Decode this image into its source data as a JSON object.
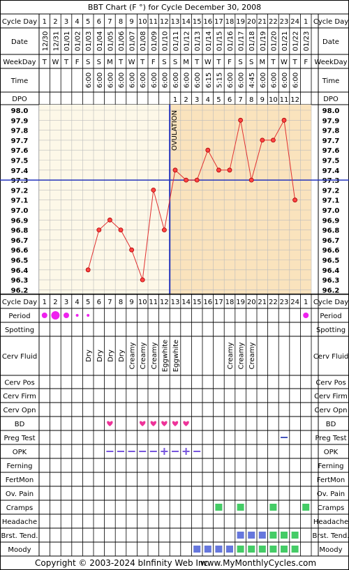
{
  "title": "BBT Chart (F °) for Cycle December 30, 2008",
  "copyright": "Copyright © 2003-2024 bInfinity Web Inc.",
  "website": "www.MyMonthlyCycles.com",
  "row_labels": {
    "cycle_day": "Cycle Day",
    "date": "Date",
    "weekday": "WeekDay",
    "time": "Time",
    "dpo": "DPO",
    "period": "Period",
    "spotting": "Spotting",
    "cerv_fluid": "Cerv Fluid",
    "cerv_pos": "Cerv Pos",
    "cerv_firm": "Cerv Firm",
    "cerv_opn": "Cerv Opn",
    "bd": "BD",
    "preg_test": "Preg Test",
    "opk": "OPK",
    "ferning": "Ferning",
    "fertmon": "FertMon",
    "ov_pain": "Ov. Pain",
    "cramps": "Cramps",
    "headache": "Headache",
    "brst_tend": "Brst. Tend.",
    "moody": "Moody"
  },
  "colors": {
    "line": "#e03030",
    "coverline": "#2233bb",
    "ovulation": "#2233bb",
    "period": "#ee22ee",
    "bd_heart": "#ee3399",
    "opk": "#7755dd",
    "cramps": "#44cc66",
    "brst_tend": "#6677dd",
    "moody": "#6677dd",
    "preg_test": "#4455bb",
    "pre_ov_bg": "#fdf8e8",
    "post_ov_bg": "#fae3bd"
  },
  "chart_data": {
    "type": "line",
    "title": "BBT Chart (F °) for Cycle December 30, 2008",
    "cycle_days": [
      "1",
      "2",
      "3",
      "4",
      "5",
      "6",
      "7",
      "8",
      "9",
      "10",
      "11",
      "12",
      "13",
      "14",
      "15",
      "16",
      "17",
      "18",
      "19",
      "20",
      "21",
      "22",
      "23",
      "24",
      "1"
    ],
    "dates": [
      "12/30",
      "12/31",
      "01/01",
      "01/02",
      "01/03",
      "01/04",
      "01/05",
      "01/06",
      "01/07",
      "01/08",
      "01/09",
      "01/10",
      "01/11",
      "01/12",
      "01/13",
      "01/14",
      "01/15",
      "01/16",
      "01/17",
      "01/18",
      "01/19",
      "01/20",
      "01/21",
      "01/22",
      "01/23"
    ],
    "weekdays": [
      "T",
      "W",
      "T",
      "F",
      "S",
      "S",
      "M",
      "T",
      "W",
      "T",
      "F",
      "S",
      "S",
      "M",
      "T",
      "W",
      "T",
      "F",
      "S",
      "S",
      "M",
      "T",
      "W",
      "T",
      "F"
    ],
    "times": [
      "",
      "",
      "",
      "",
      "6:00",
      "6:00",
      "6:00",
      "6:00",
      "6:00",
      "6:00",
      "6:00",
      "6:00",
      "6:00",
      "6:00",
      "6:00",
      "6:15",
      "5:15",
      "6:00",
      "6:00",
      "4:45",
      "6:00",
      "6:00",
      "6:00",
      "6:00",
      ""
    ],
    "dpo": [
      "",
      "",
      "",
      "",
      "",
      "",
      "",
      "",
      "",
      "",
      "",
      "",
      "1",
      "2",
      "3",
      "4",
      "5",
      "6",
      "7",
      "8",
      "9",
      "10",
      "11",
      "12",
      ""
    ],
    "temps": [
      null,
      null,
      null,
      null,
      96.4,
      96.8,
      96.9,
      96.8,
      96.6,
      96.3,
      97.2,
      96.8,
      97.4,
      97.3,
      97.3,
      97.6,
      97.4,
      97.4,
      97.9,
      97.3,
      97.7,
      97.7,
      97.9,
      97.1,
      null
    ],
    "y_ticks": [
      "98.0",
      "97.9",
      "97.8",
      "97.7",
      "97.6",
      "97.5",
      "97.4",
      "97.3",
      "97.2",
      "97.1",
      "97.0",
      "96.9",
      "96.8",
      "96.7",
      "96.6",
      "96.5",
      "96.4",
      "96.3",
      "96.2"
    ],
    "ylim": [
      96.2,
      98.0
    ],
    "coverline": 97.3,
    "ovulation_after_day_index": 11,
    "ovulation_label": "OVULATION",
    "grid": true
  },
  "period": [
    2,
    3,
    2,
    1,
    1,
    0,
    0,
    0,
    0,
    0,
    0,
    0,
    0,
    0,
    0,
    0,
    0,
    0,
    0,
    0,
    0,
    0,
    0,
    0,
    2
  ],
  "cerv_fluid": [
    "",
    "",
    "",
    "",
    "Dry",
    "Dry",
    "Dry",
    "Dry",
    "Creamy",
    "Creamy",
    "Creamy",
    "Eggwhite",
    "Eggwhite",
    "",
    "",
    "",
    "",
    "Creamy",
    "Creamy",
    "Creamy",
    "",
    "",
    "",
    "",
    ""
  ],
  "bd": [
    0,
    0,
    0,
    0,
    0,
    0,
    1,
    0,
    0,
    1,
    1,
    1,
    1,
    1,
    0,
    0,
    0,
    0,
    0,
    0,
    0,
    0,
    0,
    0,
    0
  ],
  "preg_test": [
    0,
    0,
    0,
    0,
    0,
    0,
    0,
    0,
    0,
    0,
    0,
    0,
    0,
    0,
    0,
    0,
    0,
    0,
    0,
    0,
    0,
    0,
    1,
    0,
    0
  ],
  "opk": [
    "",
    "",
    "",
    "",
    "",
    "",
    "-",
    "-",
    "-",
    "-",
    "-",
    "+",
    "-",
    "+",
    "-",
    "",
    "",
    "",
    "",
    "",
    "",
    "",
    "",
    "",
    ""
  ],
  "cramps": [
    0,
    0,
    0,
    0,
    0,
    0,
    0,
    0,
    0,
    0,
    0,
    0,
    0,
    0,
    0,
    0,
    1,
    0,
    1,
    0,
    0,
    1,
    0,
    0,
    1
  ],
  "brst_tend": [
    0,
    0,
    0,
    0,
    0,
    0,
    0,
    0,
    0,
    0,
    0,
    0,
    0,
    0,
    0,
    0,
    0,
    0,
    1,
    1,
    1,
    2,
    2,
    2,
    0
  ],
  "moody": [
    0,
    0,
    0,
    0,
    0,
    0,
    0,
    0,
    0,
    0,
    0,
    0,
    0,
    0,
    1,
    1,
    1,
    1,
    2,
    2,
    2,
    2,
    2,
    2,
    0
  ]
}
